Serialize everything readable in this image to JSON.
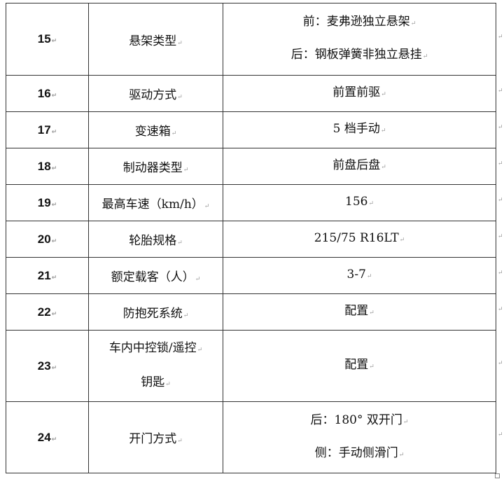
{
  "rows": [
    {
      "no": "15",
      "item": "悬架类型",
      "value": [
        "前：麦弗逊独立悬架",
        "后：钢板弹簧非独立悬挂"
      ]
    },
    {
      "no": "16",
      "item": "驱动方式",
      "value": [
        "前置前驱"
      ]
    },
    {
      "no": "17",
      "item": "变速箱",
      "value": [
        "5 档手动"
      ]
    },
    {
      "no": "18",
      "item": "制动器类型",
      "value": [
        "前盘后盘"
      ]
    },
    {
      "no": "19",
      "item": "最高车速（km/h）",
      "value": [
        "156"
      ]
    },
    {
      "no": "20",
      "item": "轮胎规格",
      "value": [
        "215/75 R16LT"
      ]
    },
    {
      "no": "21",
      "item": "额定载客（人）",
      "value": [
        "3-7"
      ]
    },
    {
      "no": "22",
      "item": "防抱死系统",
      "value": [
        "配置"
      ]
    },
    {
      "no": "23",
      "item": [
        "车内中控锁/遥控",
        "钥匙"
      ],
      "value": [
        "配置"
      ]
    },
    {
      "no": "24",
      "item": "开门方式",
      "value": [
        "后：180° 双开门",
        "侧：手动侧滑门"
      ]
    }
  ],
  "return_mark": "↵"
}
